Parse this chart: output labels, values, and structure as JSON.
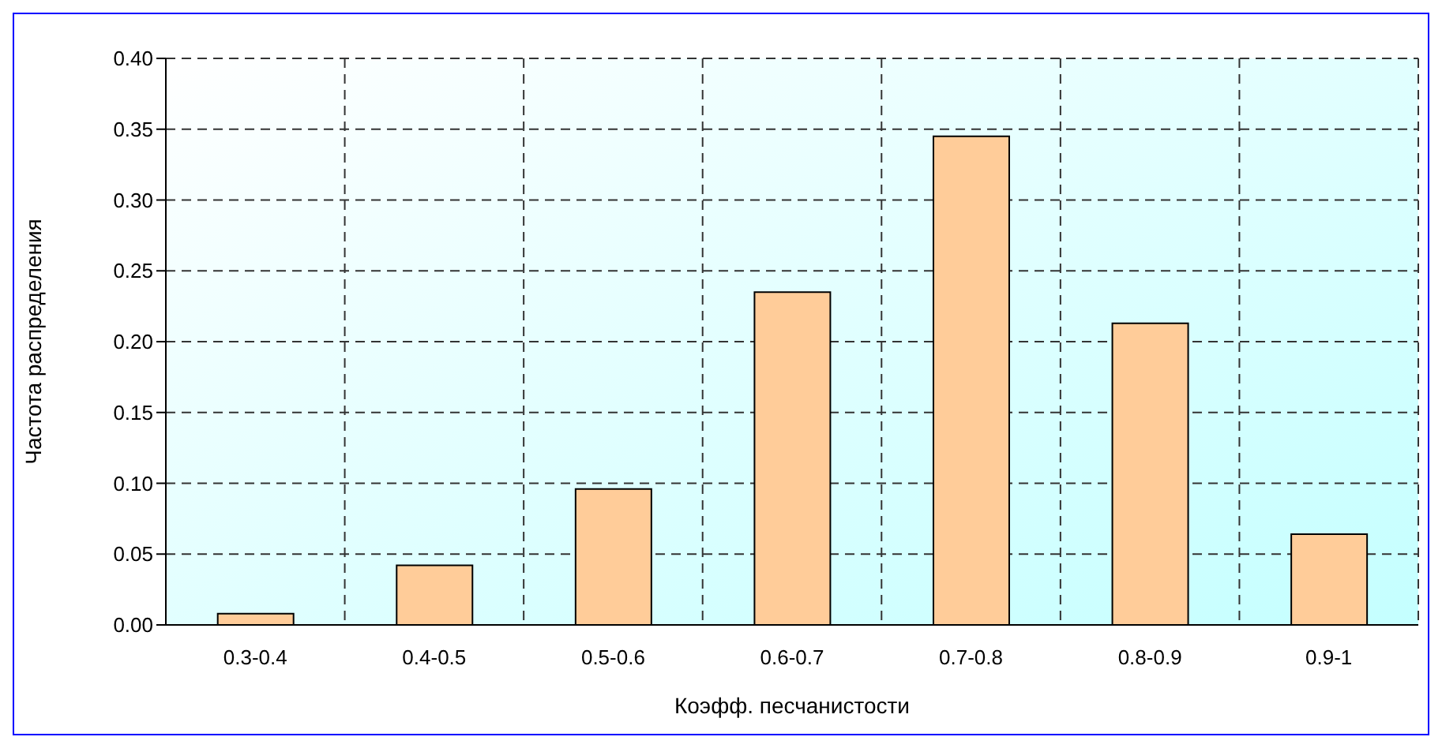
{
  "chart_data": {
    "type": "bar",
    "xlabel": "Коэфф. песчанистости",
    "ylabel": "Частота распределения",
    "categories": [
      "0.3-0.4",
      "0.4-0.5",
      "0.5-0.6",
      "0.6-0.7",
      "0.7-0.8",
      "0.8-0.9",
      "0.9-1"
    ],
    "values": [
      0.008,
      0.042,
      0.096,
      0.235,
      0.345,
      0.213,
      0.064
    ],
    "color": "#ffcc99",
    "ylim": [
      0,
      0.4
    ],
    "yticks": [
      {
        "value": 0,
        "label": "0.00"
      },
      {
        "value": 0.05,
        "label": "0.05"
      },
      {
        "value": 0.1,
        "label": "0.10"
      },
      {
        "value": 0.15,
        "label": "0.15"
      },
      {
        "value": 0.2,
        "label": "0.20"
      },
      {
        "value": 0.25,
        "label": "0.25"
      },
      {
        "value": 0.3,
        "label": "0.30"
      },
      {
        "value": 0.35,
        "label": "0.35"
      },
      {
        "value": 0.4,
        "label": "0.40"
      }
    ],
    "grid": true,
    "line_style": "dashed"
  }
}
